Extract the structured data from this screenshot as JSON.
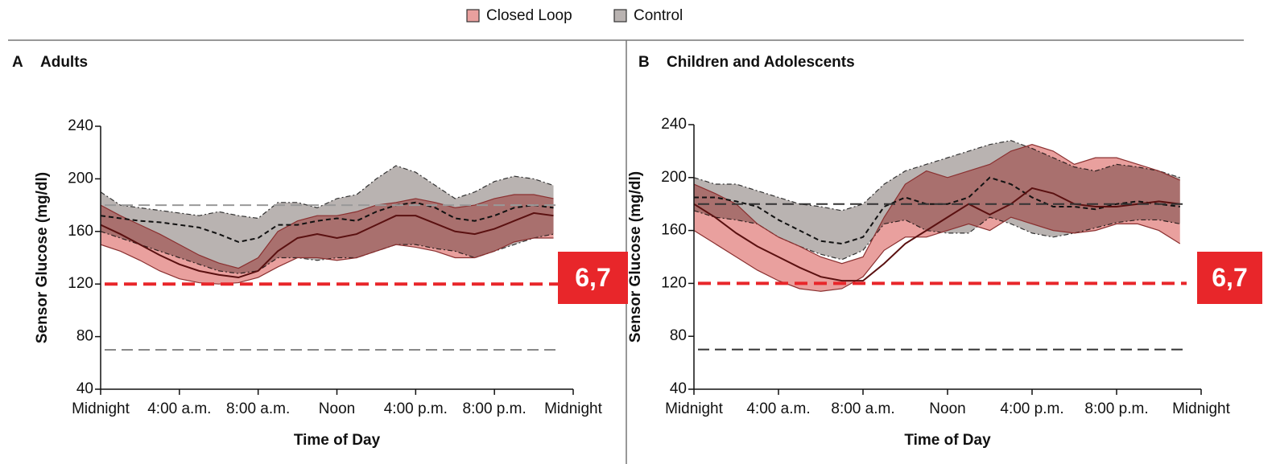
{
  "legend": [
    "Closed Loop",
    "Control"
  ],
  "chart_data": [
    {
      "type": "band",
      "panel_label": "A",
      "title": "Adults",
      "xlabel": "Time of Day",
      "ylabel": "Sensor Glucose (mg/dl)",
      "xlim": [
        0,
        24
      ],
      "ylim": [
        40,
        240
      ],
      "xticks": [
        {
          "value": 0,
          "label": "Midnight"
        },
        {
          "value": 4,
          "label": "4:00 a.m."
        },
        {
          "value": 8,
          "label": "8:00 a.m."
        },
        {
          "value": 12,
          "label": "Noon"
        },
        {
          "value": 16,
          "label": "4:00 p.m."
        },
        {
          "value": 20,
          "label": "8:00 p.m."
        },
        {
          "value": 24,
          "label": "Midnight"
        }
      ],
      "yticks": [
        40,
        80,
        120,
        160,
        200,
        240
      ],
      "x": [
        0,
        1,
        2,
        3,
        4,
        5,
        6,
        7,
        8,
        9,
        10,
        11,
        12,
        13,
        14,
        15,
        16,
        17,
        18,
        19,
        20,
        21,
        22,
        23
      ],
      "series": [
        {
          "color": "#b9b3b1",
          "median": [
            172,
            170,
            168,
            167,
            165,
            163,
            158,
            152,
            155,
            165,
            165,
            168,
            170,
            168,
            175,
            180,
            182,
            178,
            170,
            168,
            172,
            178,
            180,
            178
          ],
          "lower": [
            160,
            155,
            150,
            145,
            140,
            135,
            130,
            128,
            130,
            140,
            140,
            138,
            140,
            140,
            145,
            150,
            150,
            147,
            145,
            140,
            145,
            150,
            155,
            158
          ],
          "upper": [
            190,
            180,
            178,
            176,
            174,
            172,
            175,
            172,
            170,
            182,
            182,
            178,
            185,
            188,
            200,
            210,
            205,
            195,
            185,
            190,
            198,
            202,
            200,
            195
          ]
        },
        {
          "color": "#e9a09e",
          "median": [
            165,
            158,
            150,
            142,
            135,
            130,
            127,
            125,
            130,
            145,
            155,
            158,
            155,
            158,
            165,
            172,
            172,
            166,
            160,
            158,
            162,
            168,
            174,
            172
          ],
          "lower": [
            150,
            145,
            138,
            130,
            124,
            121,
            120,
            121,
            125,
            133,
            140,
            140,
            138,
            140,
            145,
            150,
            148,
            145,
            140,
            140,
            145,
            152,
            155,
            155
          ],
          "upper": [
            180,
            172,
            165,
            158,
            150,
            142,
            136,
            132,
            140,
            160,
            168,
            172,
            172,
            175,
            180,
            182,
            185,
            182,
            178,
            180,
            185,
            188,
            188,
            185
          ]
        }
      ],
      "reference_lines": [
        {
          "value": 180,
          "color": "#999999"
        },
        {
          "value": 70,
          "color": "#888888"
        },
        {
          "value": 120,
          "color": "#e8262a",
          "label": "6,7"
        }
      ]
    },
    {
      "type": "band",
      "panel_label": "B",
      "title": "Children and Adolescents",
      "xlabel": "Time of Day",
      "ylabel": "Sensor Glucose (mg/dl)",
      "xlim": [
        0,
        24
      ],
      "ylim": [
        40,
        240
      ],
      "xticks": [
        {
          "value": 0,
          "label": "Midnight"
        },
        {
          "value": 4,
          "label": "4:00 a.m."
        },
        {
          "value": 8,
          "label": "8:00 a.m."
        },
        {
          "value": 12,
          "label": "Noon"
        },
        {
          "value": 16,
          "label": "4:00 p.m."
        },
        {
          "value": 20,
          "label": "8:00 p.m."
        },
        {
          "value": 24,
          "label": "Midnight"
        }
      ],
      "yticks": [
        40,
        80,
        120,
        160,
        200,
        240
      ],
      "x": [
        0,
        1,
        2,
        3,
        4,
        5,
        6,
        7,
        8,
        9,
        10,
        11,
        12,
        13,
        14,
        15,
        16,
        17,
        18,
        19,
        20,
        21,
        22,
        23
      ],
      "series": [
        {
          "color": "#b9b3b1",
          "median": [
            185,
            185,
            182,
            178,
            168,
            160,
            152,
            150,
            155,
            178,
            185,
            180,
            180,
            185,
            200,
            195,
            185,
            178,
            178,
            176,
            180,
            182,
            180,
            178
          ],
          "lower": [
            175,
            170,
            168,
            165,
            155,
            148,
            142,
            138,
            145,
            165,
            168,
            160,
            158,
            158,
            170,
            165,
            158,
            155,
            158,
            162,
            166,
            168,
            168,
            165
          ],
          "upper": [
            200,
            195,
            195,
            190,
            185,
            180,
            178,
            175,
            180,
            195,
            205,
            210,
            215,
            220,
            225,
            228,
            222,
            215,
            208,
            205,
            210,
            208,
            205,
            200
          ]
        },
        {
          "color": "#e9a09e",
          "median": [
            180,
            170,
            158,
            148,
            140,
            132,
            125,
            122,
            122,
            135,
            150,
            160,
            170,
            180,
            172,
            180,
            192,
            188,
            180,
            178,
            178,
            180,
            182,
            180
          ],
          "lower": [
            160,
            150,
            140,
            130,
            122,
            116,
            114,
            116,
            125,
            145,
            155,
            155,
            160,
            165,
            160,
            170,
            165,
            160,
            158,
            160,
            165,
            165,
            160,
            150
          ],
          "upper": [
            195,
            188,
            180,
            165,
            155,
            148,
            140,
            135,
            140,
            170,
            195,
            205,
            200,
            205,
            210,
            220,
            225,
            220,
            210,
            215,
            215,
            210,
            205,
            198
          ]
        }
      ],
      "reference_lines": [
        {
          "value": 180,
          "color": "#333333"
        },
        {
          "value": 70,
          "color": "#333333"
        },
        {
          "value": 120,
          "color": "#e8262a",
          "label": "6,7"
        }
      ]
    }
  ]
}
